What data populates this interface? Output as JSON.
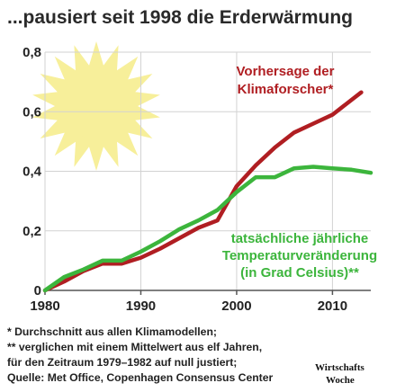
{
  "chart_data": {
    "type": "line",
    "title": "...pausiert seit 1998 die Erderwärmung",
    "xlim": [
      1980,
      2014
    ],
    "ylim": [
      0,
      0.8
    ],
    "x_ticks": [
      "1980",
      "1990",
      "2000",
      "2010"
    ],
    "y_ticks": [
      "0",
      "0,2",
      "0,4",
      "0,6",
      "0,8"
    ],
    "grid": true,
    "series": [
      {
        "name": "Vorhersage der Klimaforscher*",
        "color": "#b01e22",
        "x": [
          1980,
          1982,
          1984,
          1986,
          1988,
          1990,
          1992,
          1994,
          1996,
          1998,
          2000,
          2002,
          2004,
          2006,
          2008,
          2010,
          2012,
          2013
        ],
        "y": [
          0.0,
          0.03,
          0.065,
          0.09,
          0.09,
          0.11,
          0.14,
          0.175,
          0.21,
          0.235,
          0.35,
          0.42,
          0.48,
          0.53,
          0.56,
          0.59,
          0.64,
          0.665
        ]
      },
      {
        "name": "tatsächliche jährliche Temperaturveränderung (in Grad Celsius)**",
        "color": "#3cb53c",
        "x": [
          1980,
          1982,
          1984,
          1986,
          1988,
          1990,
          1992,
          1994,
          1996,
          1998,
          2000,
          2002,
          2004,
          2006,
          2008,
          2010,
          2012,
          2014
        ],
        "y": [
          0.0,
          0.045,
          0.07,
          0.1,
          0.1,
          0.13,
          0.165,
          0.205,
          0.235,
          0.27,
          0.33,
          0.38,
          0.38,
          0.41,
          0.415,
          0.41,
          0.405,
          0.395
        ]
      }
    ],
    "annotations": {
      "red_label": [
        "Vorhersage der",
        "Klimaforscher*"
      ],
      "green_label": [
        "tatsächliche jährliche",
        "Temperaturveränderung",
        "(in Grad Celsius)**"
      ]
    },
    "footnotes": [
      "* Durchschnitt aus allen Klimamodellen;",
      "** verglichen mit einem Mittelwert aus elf Jahren,",
      "für den Zeitraum 1979–1982 auf null justiert;",
      "Quelle: Met Office, Copenhagen Consensus Center"
    ],
    "logo": [
      "Wirtschafts",
      "Woche"
    ]
  },
  "colors": {
    "sun": "#f7ef9a",
    "grid": "#d2d2d2",
    "axis": "#555555"
  }
}
